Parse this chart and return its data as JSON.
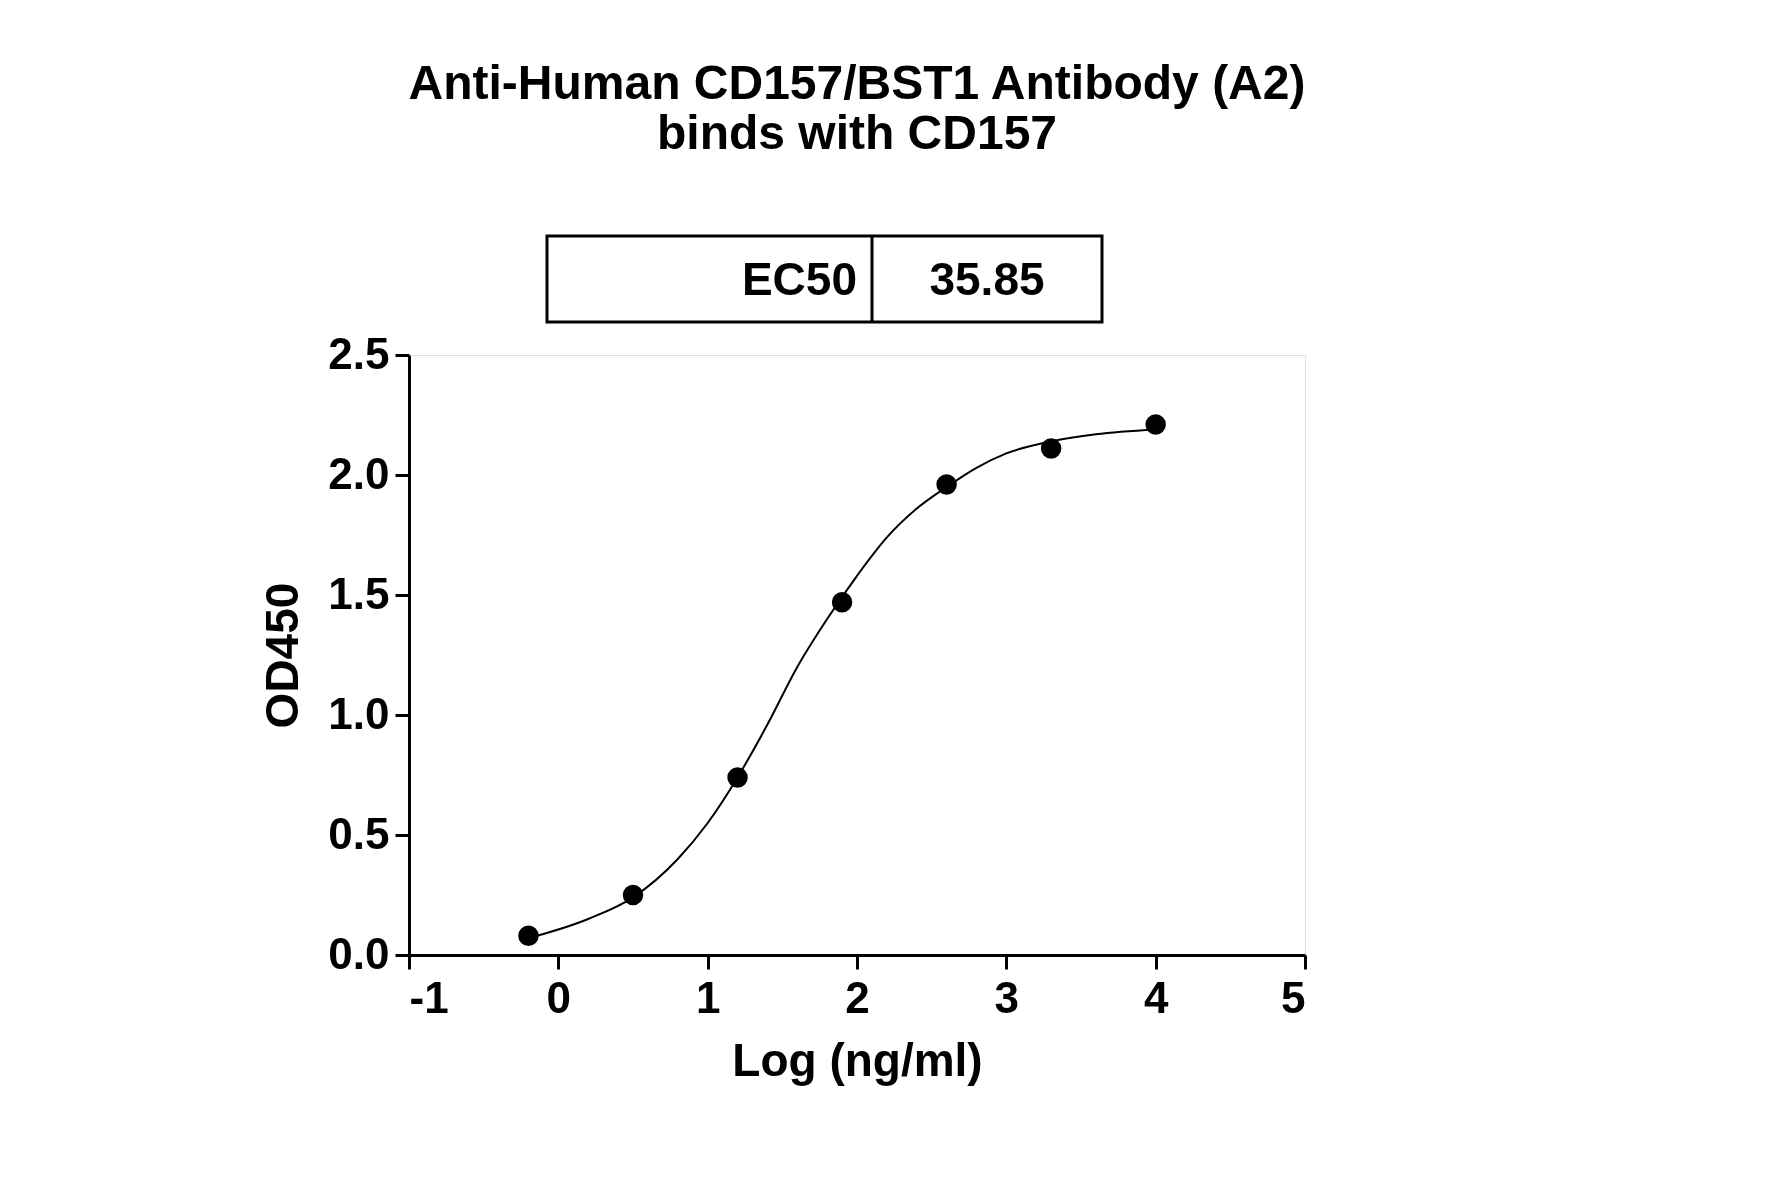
{
  "chart_data": {
    "type": "scatter",
    "title": [
      "Anti-Human CD157/BST1 Antibody (A2)",
      "binds with CD157"
    ],
    "xlabel": "Log (ng/ml)",
    "ylabel": "OD450",
    "annotations": [
      "EC50",
      "35.85"
    ],
    "series": [
      {
        "color": "#000000",
        "marker": "circle",
        "x": [
          -0.2,
          0.5,
          1.2,
          1.9,
          2.6,
          3.3,
          4.0
        ],
        "values": [
          0.08,
          0.25,
          0.74,
          1.47,
          1.96,
          2.11,
          2.21
        ]
      },
      {
        "type": "line",
        "color": "#000000",
        "marker": "none",
        "line_style": "solid",
        "x": [
          -0.2,
          0.2,
          0.5,
          0.8,
          1.0,
          1.2,
          1.4,
          1.6,
          1.8,
          2.0,
          2.2,
          2.4,
          2.6,
          2.8,
          3.0,
          3.3,
          3.6,
          4.0
        ],
        "values": [
          0.07,
          0.15,
          0.24,
          0.4,
          0.55,
          0.74,
          0.96,
          1.2,
          1.4,
          1.58,
          1.74,
          1.86,
          1.95,
          2.03,
          2.09,
          2.14,
          2.17,
          2.19
        ]
      }
    ],
    "xlim": [
      -1,
      5
    ],
    "xticks": [
      -1,
      0,
      1,
      2,
      3,
      4,
      5
    ],
    "ylim": [
      0,
      2.5
    ],
    "yticks": [
      {
        "value": 0,
        "label": "0.0"
      },
      {
        "value": 0.5,
        "label": "0.5"
      },
      {
        "value": 1,
        "label": "1.0"
      },
      {
        "value": 1.5,
        "label": "1.5"
      },
      {
        "value": 2,
        "label": "2.0"
      },
      {
        "value": 2.5,
        "label": "2.5"
      }
    ],
    "grid": false
  }
}
